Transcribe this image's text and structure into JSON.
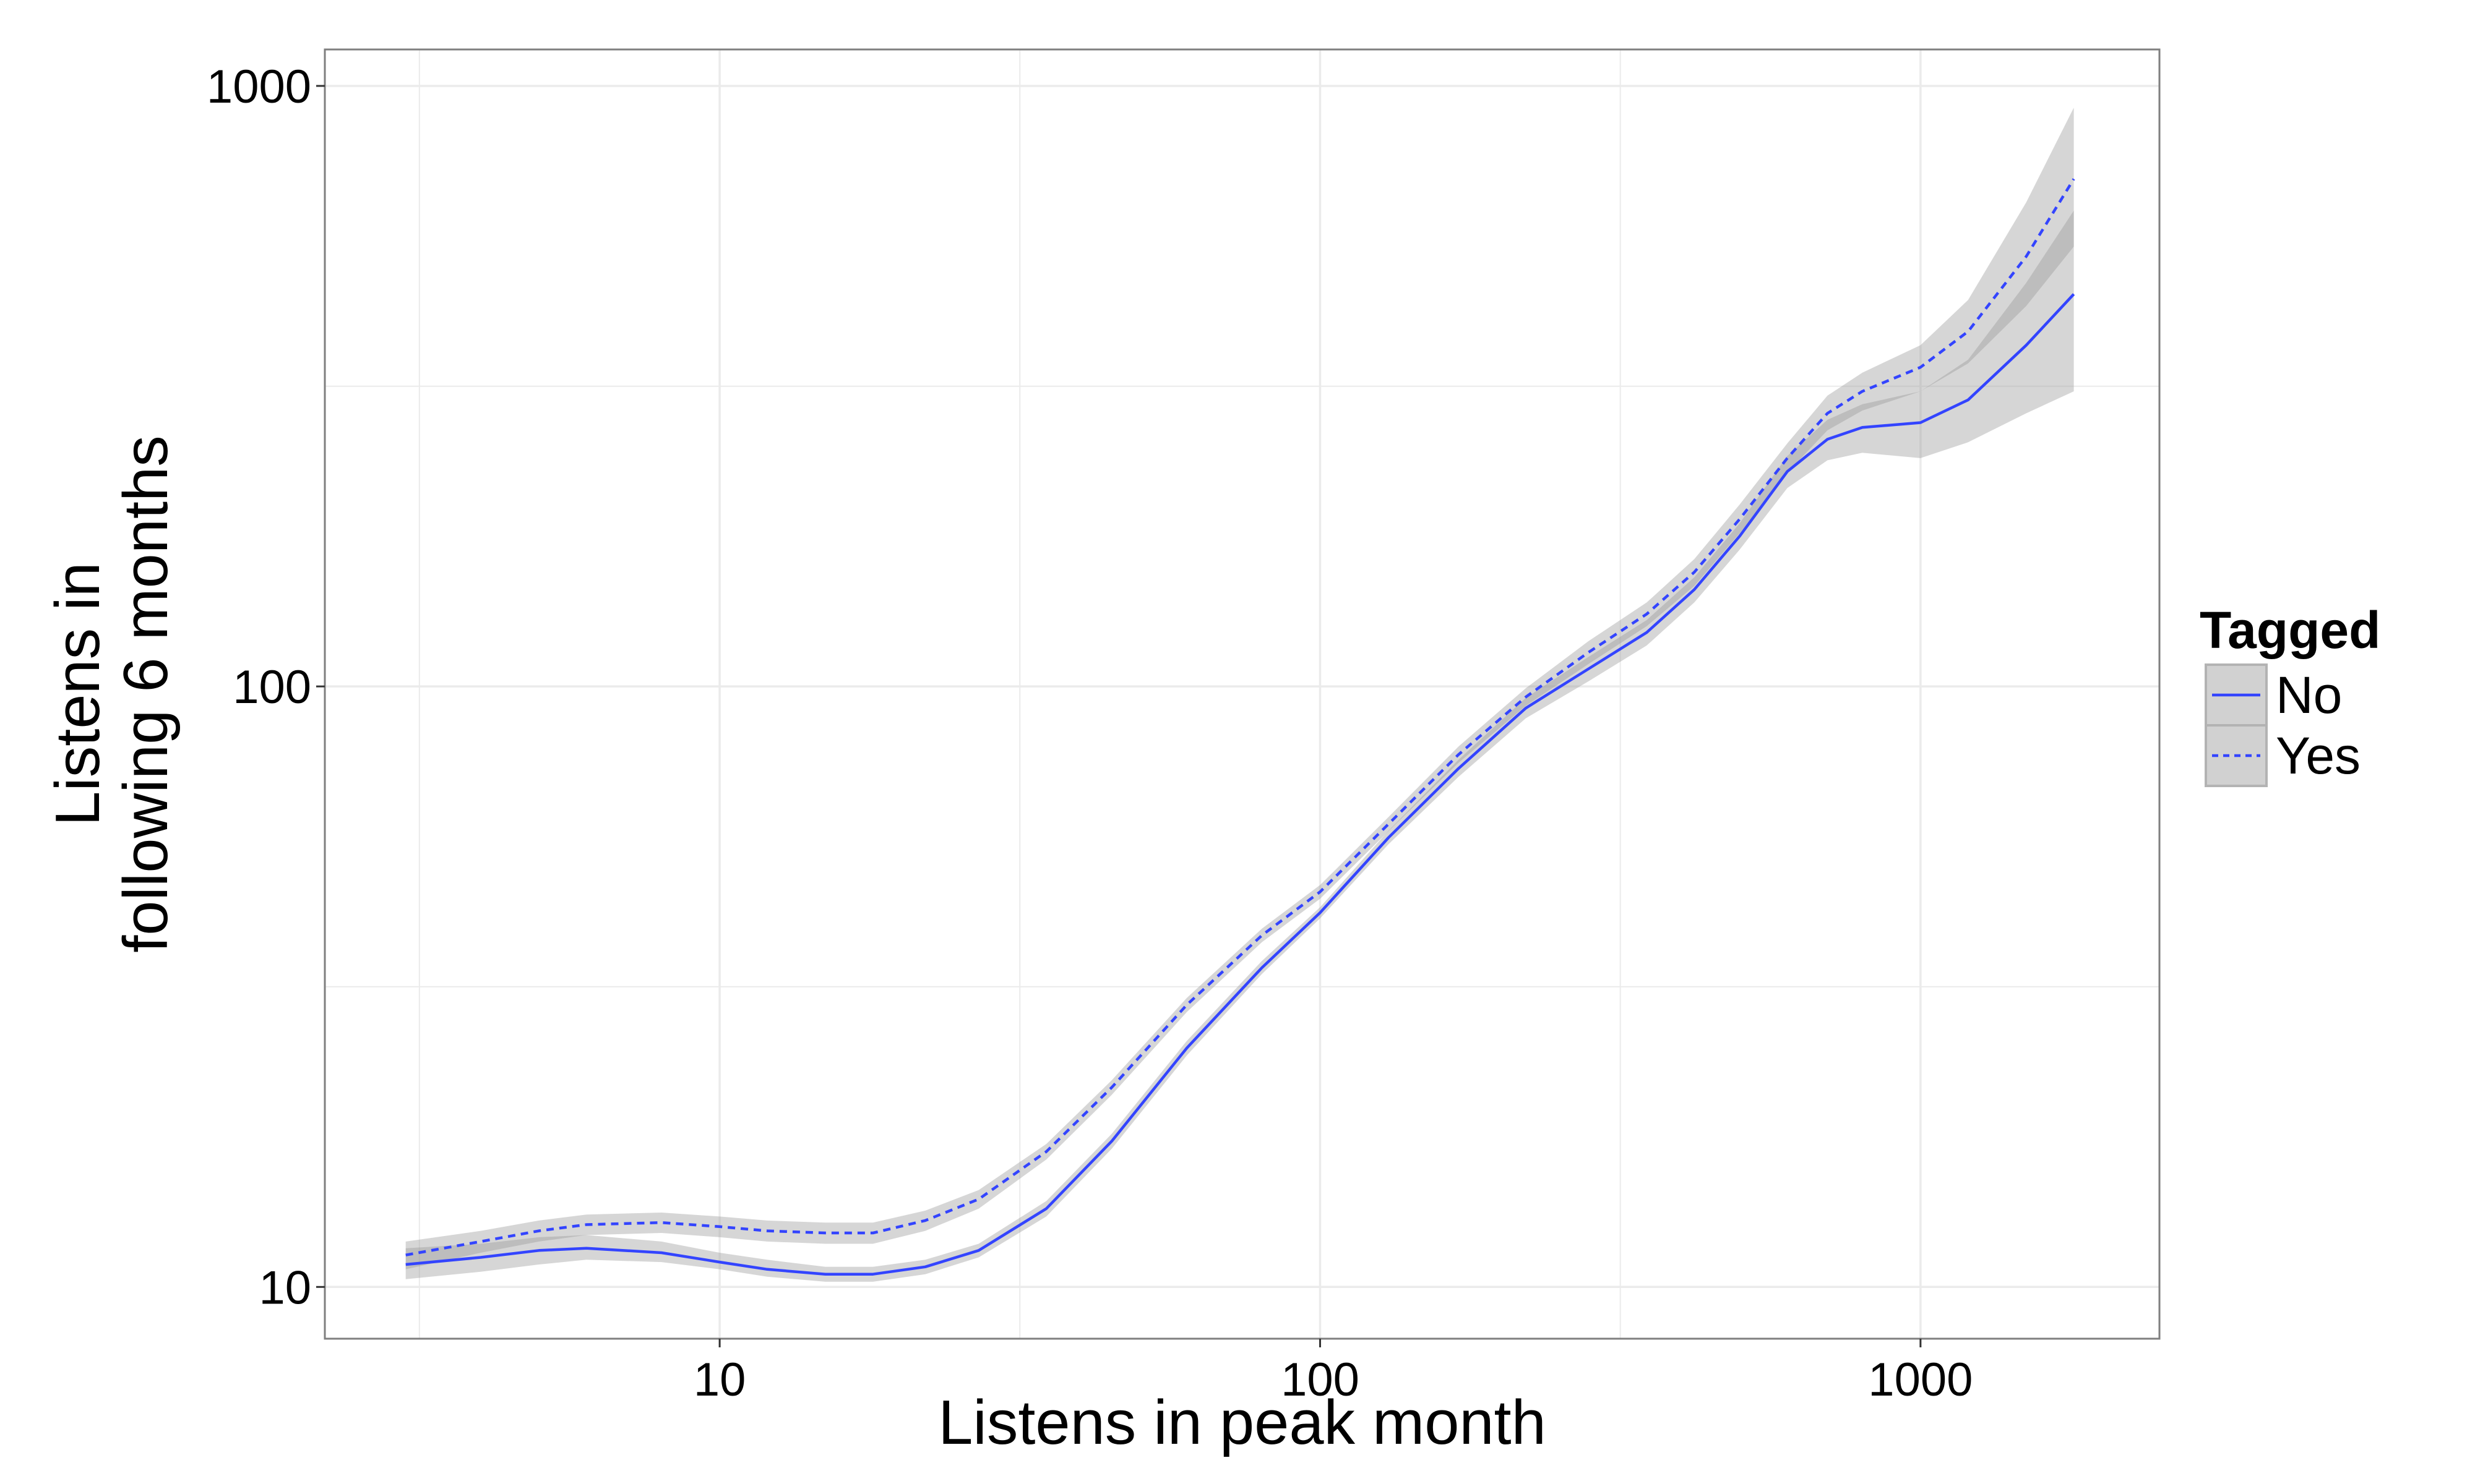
{
  "chart_data": {
    "type": "line",
    "xlabel": "Listens in peak month",
    "ylabel_lines": [
      "Listens in",
      "following 6 months"
    ],
    "x_scale": "log10",
    "y_scale": "log10",
    "xlim": [
      2.2,
      2500
    ],
    "ylim": [
      8.2,
      1150
    ],
    "x_ticks": [
      10,
      100,
      1000
    ],
    "x_tick_labels": [
      "10",
      "100",
      "1000"
    ],
    "y_ticks": [
      10,
      100,
      1000
    ],
    "y_tick_labels": [
      "10",
      "100",
      "1000"
    ],
    "x_minor_grid": [
      3.162,
      31.62,
      316.2
    ],
    "y_minor_grid": [
      31.62,
      316.2
    ],
    "grid": true,
    "legend": {
      "title": "Tagged",
      "placement": "right",
      "entries": [
        {
          "label": "No",
          "line_style": "solid"
        },
        {
          "label": "Yes",
          "line_style": "dashed"
        }
      ]
    },
    "colors": {
      "line": "#3344ff",
      "band": "#999999",
      "panel_border": "#7f7f7f",
      "grid": "#ebebeb"
    },
    "series": [
      {
        "name": "No",
        "line_style": "solid",
        "x": [
          3,
          4,
          5,
          6,
          8,
          10,
          12,
          15,
          18,
          22,
          27,
          35,
          45,
          60,
          80,
          100,
          130,
          170,
          220,
          280,
          350,
          420,
          500,
          600,
          700,
          800,
          1000,
          1200,
          1500,
          1800
        ],
        "y": [
          10.9,
          11.2,
          11.5,
          11.6,
          11.4,
          11.0,
          10.7,
          10.5,
          10.5,
          10.8,
          11.5,
          13.5,
          17.5,
          25,
          34,
          42,
          56,
          73,
          92,
          107,
          123,
          145,
          178,
          228,
          258,
          270,
          275,
          300,
          370,
          450
        ],
        "lower": [
          10.3,
          10.6,
          10.9,
          11.1,
          11.0,
          10.7,
          10.4,
          10.2,
          10.2,
          10.5,
          11.2,
          13.1,
          17.0,
          24.3,
          33.2,
          41.1,
          54.6,
          70.7,
          88.5,
          102,
          117,
          138,
          169,
          214,
          238,
          245,
          240,
          255,
          285,
          310
        ],
        "upper": [
          11.6,
          11.8,
          12.1,
          12.2,
          11.9,
          11.4,
          11.1,
          10.8,
          10.8,
          11.1,
          11.8,
          13.9,
          18.0,
          25.7,
          34.9,
          42.9,
          57.5,
          75.5,
          95.7,
          112,
          129,
          152,
          187,
          242,
          278,
          295,
          310,
          350,
          470,
          620
        ]
      },
      {
        "name": "Yes",
        "line_style": "dashed",
        "x": [
          3,
          4,
          5,
          6,
          8,
          10,
          12,
          15,
          18,
          22,
          27,
          35,
          45,
          60,
          80,
          100,
          130,
          170,
          220,
          280,
          350,
          420,
          500,
          600,
          700,
          800,
          1000,
          1200,
          1500,
          1800
        ],
        "y": [
          11.3,
          11.9,
          12.4,
          12.7,
          12.8,
          12.6,
          12.4,
          12.3,
          12.3,
          12.9,
          14.0,
          16.8,
          21.5,
          29.5,
          38.5,
          45.5,
          59,
          77,
          96,
          114,
          132,
          155,
          190,
          240,
          285,
          310,
          340,
          390,
          520,
          700
        ],
        "lower": [
          10.7,
          11.4,
          11.9,
          12.2,
          12.3,
          12.1,
          11.9,
          11.8,
          11.8,
          12.4,
          13.5,
          16.3,
          20.9,
          28.7,
          37.5,
          44.3,
          57.4,
          74.6,
          92.8,
          109,
          126,
          147,
          180,
          227,
          267,
          288,
          310,
          345,
          430,
          540
        ],
        "upper": [
          11.9,
          12.4,
          12.9,
          13.2,
          13.3,
          13.1,
          12.9,
          12.8,
          12.8,
          13.4,
          14.5,
          17.3,
          22.1,
          30.3,
          39.5,
          46.7,
          60.6,
          79.4,
          99.3,
          119,
          138,
          163,
          201,
          254,
          305,
          333,
          370,
          440,
          640,
          920
        ]
      }
    ]
  }
}
